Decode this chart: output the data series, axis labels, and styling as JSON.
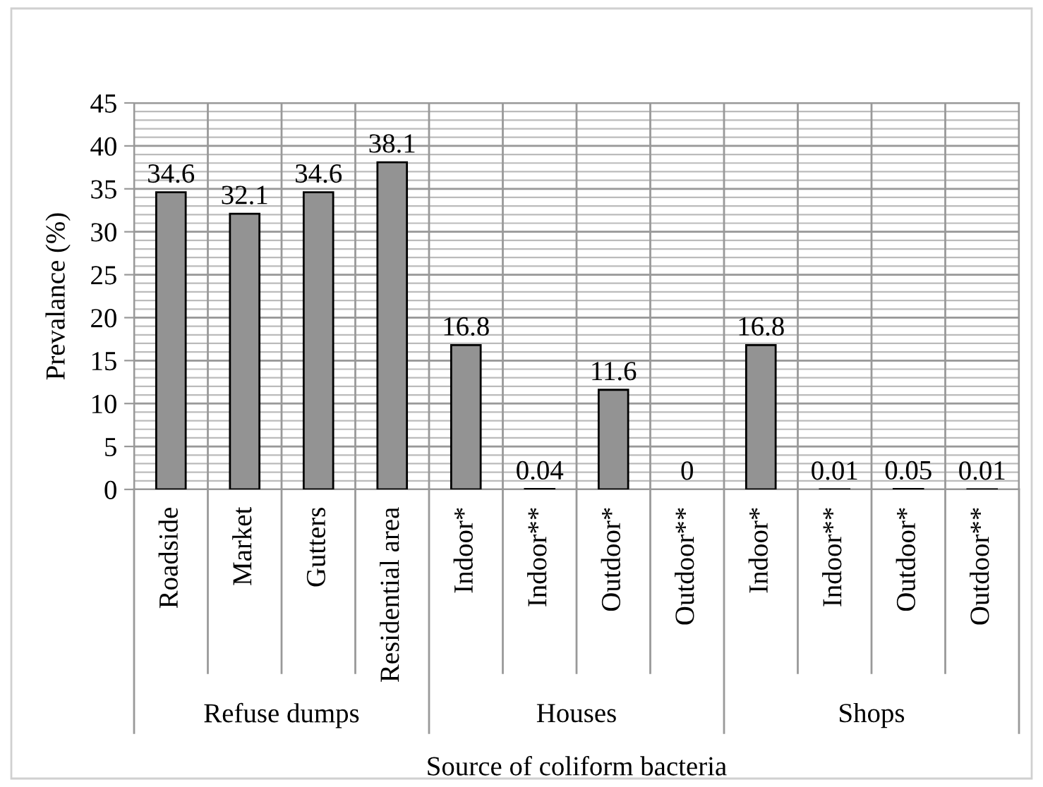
{
  "chart_data": {
    "type": "bar",
    "categories": [
      "Roadside",
      "Market",
      "Gutters",
      "Residential area",
      "Indoor*",
      "Indoor**",
      "Outdoor*",
      "Outdoor**",
      "Indoor*",
      "Indoor**",
      "Outdoor*",
      "Outdoor**"
    ],
    "values": [
      34.6,
      32.1,
      34.6,
      38.1,
      16.8,
      0.04,
      11.6,
      0,
      16.8,
      0.01,
      0.05,
      0.01
    ],
    "color": "#939393",
    "ylabel": "Prevalance (%)",
    "xlabel": "Source of coliform bacteria",
    "annotations": [
      "Refuse dumps",
      "Houses",
      "Shops"
    ],
    "ylim": [
      0,
      45
    ],
    "yticks": [
      0,
      5,
      10,
      15,
      20,
      25,
      30,
      35,
      40,
      45
    ],
    "grid": true,
    "data_labels": true
  }
}
